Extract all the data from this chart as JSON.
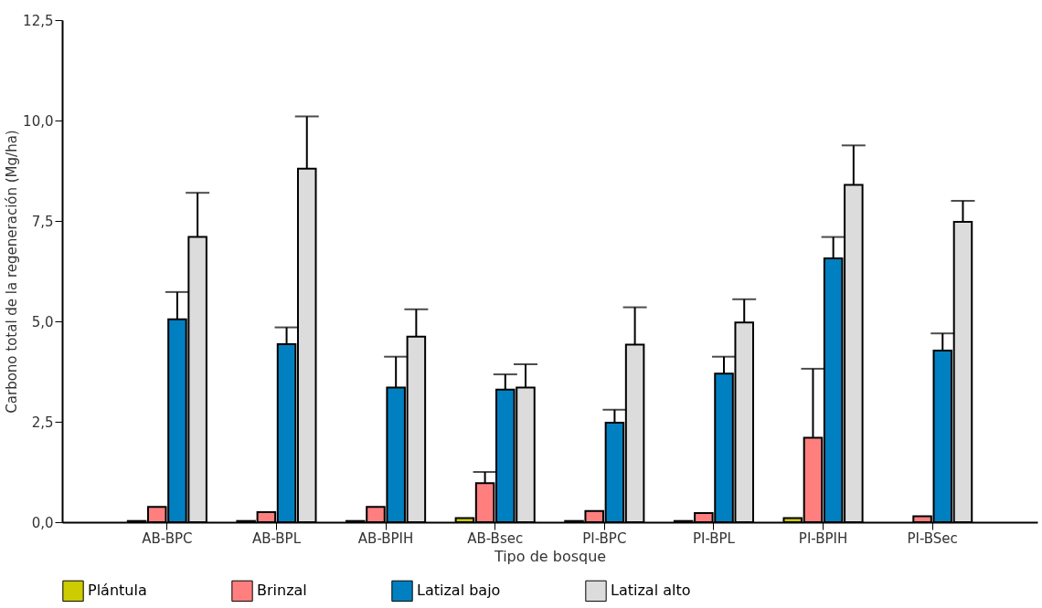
{
  "chart_data": {
    "type": "bar",
    "xlabel": "Tipo de bosque",
    "ylabel": "Carbono total de la regeneración (Mg/ha)",
    "categories": [
      "AB-BPC",
      "AB-BPL",
      "AB-BPIH",
      "AB-Bsec",
      "PI-BPC",
      "PI-BPL",
      "PI-BPIH",
      "PI-BSec"
    ],
    "series": [
      {
        "name": "Plántula",
        "color": "#cccc00",
        "values": [
          0.03,
          0.03,
          0.03,
          0.1,
          0.03,
          0.03,
          0.1,
          null
        ]
      },
      {
        "name": "Brinzal",
        "color": "#ff7f7f",
        "values": [
          0.38,
          0.25,
          0.38,
          0.97,
          0.28,
          0.23,
          2.1,
          0.15
        ],
        "errors": [
          null,
          null,
          null,
          [
            0.97,
            1.25
          ],
          null,
          null,
          [
            2.1,
            3.82
          ],
          null
        ]
      },
      {
        "name": "Latizal bajo",
        "color": "#0080c0",
        "values": [
          5.05,
          4.43,
          3.35,
          3.3,
          2.48,
          3.7,
          6.57,
          4.27
        ],
        "errors": [
          [
            5.05,
            5.73
          ],
          [
            4.43,
            4.85
          ],
          [
            3.35,
            4.12
          ],
          [
            3.3,
            3.68
          ],
          [
            2.48,
            2.8
          ],
          [
            3.7,
            4.12
          ],
          [
            6.57,
            7.1
          ],
          [
            4.27,
            4.7
          ]
        ]
      },
      {
        "name": "Latizal alto",
        "color": "#dcdcdc",
        "values": [
          7.1,
          8.8,
          4.62,
          3.35,
          4.42,
          4.97,
          8.4,
          7.48
        ],
        "errors": [
          [
            7.1,
            8.2
          ],
          [
            8.8,
            10.1
          ],
          [
            4.62,
            5.3
          ],
          [
            3.35,
            3.93
          ],
          [
            4.42,
            5.35
          ],
          [
            4.97,
            5.55
          ],
          [
            8.4,
            9.38
          ],
          [
            7.48,
            8.0
          ]
        ]
      }
    ],
    "ylim": [
      0,
      12.5
    ],
    "yticks": [
      {
        "value": 0,
        "label": "0,0"
      },
      {
        "value": 2.5,
        "label": "2,5"
      },
      {
        "value": 5,
        "label": "5,0"
      },
      {
        "value": 7.5,
        "label": "7,5"
      },
      {
        "value": 10,
        "label": "10,0"
      },
      {
        "value": 12.5,
        "label": "12,5"
      }
    ],
    "grid": false,
    "legend": "bottom"
  }
}
